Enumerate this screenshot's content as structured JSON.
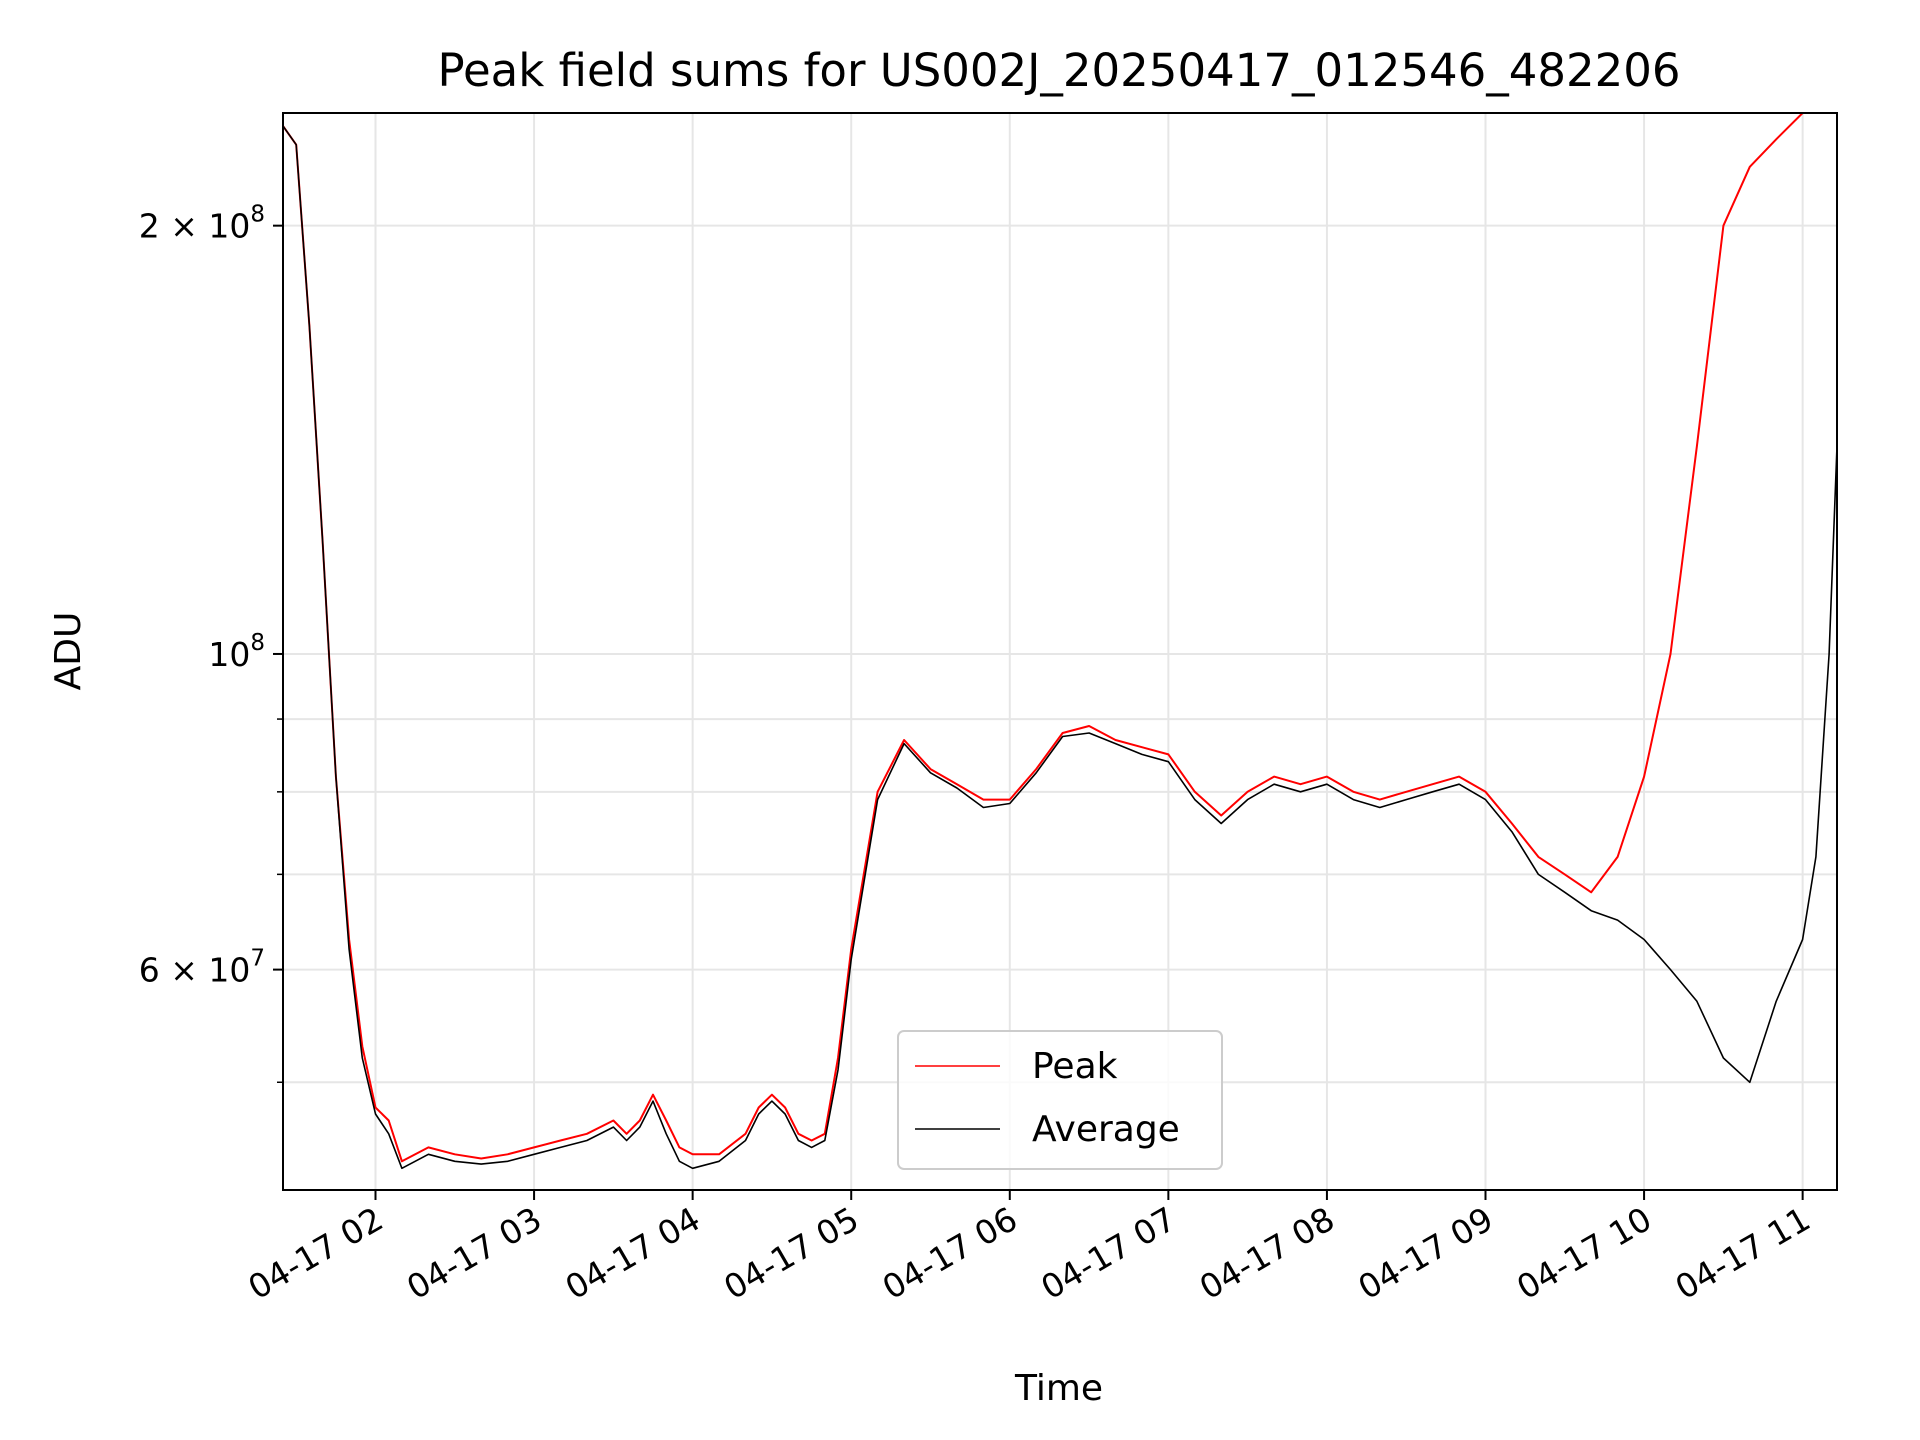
{
  "chart_data": {
    "type": "line",
    "title": "Peak field sums for US002J_20250417_012546_482206",
    "xlabel": "Time",
    "ylabel": "ADU",
    "x_scale": "time",
    "y_scale": "log",
    "xlim": [
      "2025-04-17T01:25",
      "2025-04-17T11:13"
    ],
    "ylim": [
      42000000,
      240000000
    ],
    "grid": true,
    "legend": {
      "position": "lower-center",
      "entries": [
        "Peak",
        "Average"
      ]
    },
    "x_ticks": [
      {
        "value": "2025-04-17T02:00",
        "label": "04-17 02"
      },
      {
        "value": "2025-04-17T03:00",
        "label": "04-17 03"
      },
      {
        "value": "2025-04-17T04:00",
        "label": "04-17 04"
      },
      {
        "value": "2025-04-17T05:00",
        "label": "04-17 05"
      },
      {
        "value": "2025-04-17T06:00",
        "label": "04-17 06"
      },
      {
        "value": "2025-04-17T07:00",
        "label": "04-17 07"
      },
      {
        "value": "2025-04-17T08:00",
        "label": "04-17 08"
      },
      {
        "value": "2025-04-17T09:00",
        "label": "04-17 09"
      },
      {
        "value": "2025-04-17T10:00",
        "label": "04-17 10"
      },
      {
        "value": "2025-04-17T11:00",
        "label": "04-17 11"
      }
    ],
    "y_major_ticks": [
      {
        "value": 60000000,
        "mantissa": "6",
        "base": "10",
        "exp": "7"
      },
      {
        "value": 100000000,
        "mantissa": "",
        "base": "10",
        "exp": "8"
      },
      {
        "value": 200000000,
        "mantissa": "2",
        "base": "10",
        "exp": "8"
      }
    ],
    "y_minor_ticks": [
      50000000,
      70000000,
      80000000,
      90000000
    ],
    "series": [
      {
        "name": "Peak",
        "color": "#ff0000",
        "x": [
          "2025-04-17T01:25",
          "2025-04-17T01:30",
          "2025-04-17T01:35",
          "2025-04-17T01:40",
          "2025-04-17T01:45",
          "2025-04-17T01:50",
          "2025-04-17T01:55",
          "2025-04-17T02:00",
          "2025-04-17T02:05",
          "2025-04-17T02:10",
          "2025-04-17T02:20",
          "2025-04-17T02:30",
          "2025-04-17T02:40",
          "2025-04-17T02:50",
          "2025-04-17T03:00",
          "2025-04-17T03:10",
          "2025-04-17T03:20",
          "2025-04-17T03:30",
          "2025-04-17T03:35",
          "2025-04-17T03:40",
          "2025-04-17T03:45",
          "2025-04-17T03:50",
          "2025-04-17T03:55",
          "2025-04-17T04:00",
          "2025-04-17T04:10",
          "2025-04-17T04:20",
          "2025-04-17T04:25",
          "2025-04-17T04:30",
          "2025-04-17T04:35",
          "2025-04-17T04:40",
          "2025-04-17T04:45",
          "2025-04-17T04:50",
          "2025-04-17T04:55",
          "2025-04-17T05:00",
          "2025-04-17T05:10",
          "2025-04-17T05:20",
          "2025-04-17T05:30",
          "2025-04-17T05:40",
          "2025-04-17T05:50",
          "2025-04-17T06:00",
          "2025-04-17T06:10",
          "2025-04-17T06:20",
          "2025-04-17T06:30",
          "2025-04-17T06:40",
          "2025-04-17T06:50",
          "2025-04-17T07:00",
          "2025-04-17T07:10",
          "2025-04-17T07:20",
          "2025-04-17T07:30",
          "2025-04-17T07:40",
          "2025-04-17T07:50",
          "2025-04-17T08:00",
          "2025-04-17T08:10",
          "2025-04-17T08:20",
          "2025-04-17T08:30",
          "2025-04-17T08:40",
          "2025-04-17T08:50",
          "2025-04-17T09:00",
          "2025-04-17T09:10",
          "2025-04-17T09:20",
          "2025-04-17T09:30",
          "2025-04-17T09:40",
          "2025-04-17T09:50",
          "2025-04-17T10:00",
          "2025-04-17T10:10",
          "2025-04-17T10:20",
          "2025-04-17T10:30",
          "2025-04-17T10:40",
          "2025-04-17T10:50",
          "2025-04-17T11:00",
          "2025-04-17T11:05",
          "2025-04-17T11:10",
          "2025-04-17T11:13"
        ],
        "values": [
          235000000,
          228000000,
          170000000,
          120000000,
          82000000,
          63000000,
          53000000,
          48000000,
          47000000,
          44000000,
          45000000,
          44500000,
          44200000,
          44500000,
          45000000,
          45500000,
          46000000,
          47000000,
          46000000,
          47000000,
          49000000,
          47000000,
          45000000,
          44500000,
          44500000,
          46000000,
          48000000,
          49000000,
          48000000,
          46000000,
          45500000,
          46000000,
          52000000,
          62000000,
          80000000,
          87000000,
          83000000,
          81000000,
          79000000,
          79000000,
          83000000,
          88000000,
          89000000,
          87000000,
          86000000,
          85000000,
          80000000,
          77000000,
          80000000,
          82000000,
          81000000,
          82000000,
          80000000,
          79000000,
          80000000,
          81000000,
          82000000,
          80000000,
          76000000,
          72000000,
          70000000,
          68000000,
          72000000,
          82000000,
          100000000,
          140000000,
          200000000,
          220000000,
          230000000,
          240000000,
          240000000,
          240000000,
          240000000
        ]
      },
      {
        "name": "Average",
        "color": "#000000",
        "x": [
          "2025-04-17T01:25",
          "2025-04-17T01:30",
          "2025-04-17T01:35",
          "2025-04-17T01:40",
          "2025-04-17T01:45",
          "2025-04-17T01:50",
          "2025-04-17T01:55",
          "2025-04-17T02:00",
          "2025-04-17T02:05",
          "2025-04-17T02:10",
          "2025-04-17T02:20",
          "2025-04-17T02:30",
          "2025-04-17T02:40",
          "2025-04-17T02:50",
          "2025-04-17T03:00",
          "2025-04-17T03:10",
          "2025-04-17T03:20",
          "2025-04-17T03:30",
          "2025-04-17T03:35",
          "2025-04-17T03:40",
          "2025-04-17T03:45",
          "2025-04-17T03:50",
          "2025-04-17T03:55",
          "2025-04-17T04:00",
          "2025-04-17T04:10",
          "2025-04-17T04:20",
          "2025-04-17T04:25",
          "2025-04-17T04:30",
          "2025-04-17T04:35",
          "2025-04-17T04:40",
          "2025-04-17T04:45",
          "2025-04-17T04:50",
          "2025-04-17T04:55",
          "2025-04-17T05:00",
          "2025-04-17T05:10",
          "2025-04-17T05:20",
          "2025-04-17T05:30",
          "2025-04-17T05:40",
          "2025-04-17T05:50",
          "2025-04-17T06:00",
          "2025-04-17T06:10",
          "2025-04-17T06:20",
          "2025-04-17T06:30",
          "2025-04-17T06:40",
          "2025-04-17T06:50",
          "2025-04-17T07:00",
          "2025-04-17T07:10",
          "2025-04-17T07:20",
          "2025-04-17T07:30",
          "2025-04-17T07:40",
          "2025-04-17T07:50",
          "2025-04-17T08:00",
          "2025-04-17T08:10",
          "2025-04-17T08:20",
          "2025-04-17T08:30",
          "2025-04-17T08:40",
          "2025-04-17T08:50",
          "2025-04-17T09:00",
          "2025-04-17T09:10",
          "2025-04-17T09:20",
          "2025-04-17T09:30",
          "2025-04-17T09:40",
          "2025-04-17T09:50",
          "2025-04-17T10:00",
          "2025-04-17T10:10",
          "2025-04-17T10:20",
          "2025-04-17T10:30",
          "2025-04-17T10:40",
          "2025-04-17T10:50",
          "2025-04-17T11:00",
          "2025-04-17T11:05",
          "2025-04-17T11:10",
          "2025-04-17T11:13"
        ],
        "values": [
          235000000,
          228000000,
          170000000,
          120000000,
          82000000,
          62000000,
          52000000,
          47500000,
          46000000,
          43500000,
          44500000,
          44000000,
          43800000,
          44000000,
          44500000,
          45000000,
          45500000,
          46500000,
          45500000,
          46500000,
          48500000,
          46000000,
          44000000,
          43500000,
          44000000,
          45500000,
          47500000,
          48500000,
          47500000,
          45500000,
          45000000,
          45500000,
          51000000,
          61000000,
          79000000,
          86500000,
          82500000,
          80500000,
          78000000,
          78500000,
          82500000,
          87500000,
          88000000,
          86500000,
          85000000,
          84000000,
          79000000,
          76000000,
          79000000,
          81000000,
          80000000,
          81000000,
          79000000,
          78000000,
          79000000,
          80000000,
          81000000,
          79000000,
          75000000,
          70000000,
          68000000,
          66000000,
          65000000,
          63000000,
          60000000,
          57000000,
          52000000,
          50000000,
          57000000,
          63000000,
          72000000,
          100000000,
          140000000
        ]
      }
    ]
  }
}
